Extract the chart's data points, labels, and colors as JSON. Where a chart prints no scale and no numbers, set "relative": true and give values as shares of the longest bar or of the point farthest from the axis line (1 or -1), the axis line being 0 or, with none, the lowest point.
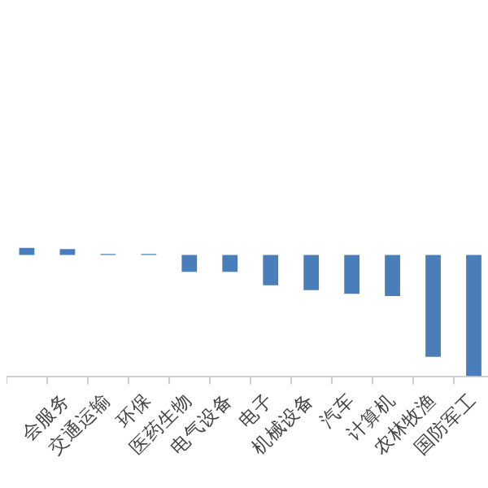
{
  "chart_data": {
    "type": "bar",
    "relative": true,
    "categories": [
      null,
      "会服务",
      "交通运输",
      "环保",
      "医药生物",
      "电气设备",
      "电子",
      "机械设备",
      "汽车",
      "计算机",
      "农林牧渔",
      "国防军工"
    ],
    "values": [
      0.057,
      0.047,
      0.008,
      0.008,
      -0.14,
      -0.14,
      -0.25,
      -0.29,
      -0.32,
      -0.34,
      -0.84,
      -1
    ],
    "color": "#4a7ebb",
    "grid": false,
    "legend": false
  }
}
